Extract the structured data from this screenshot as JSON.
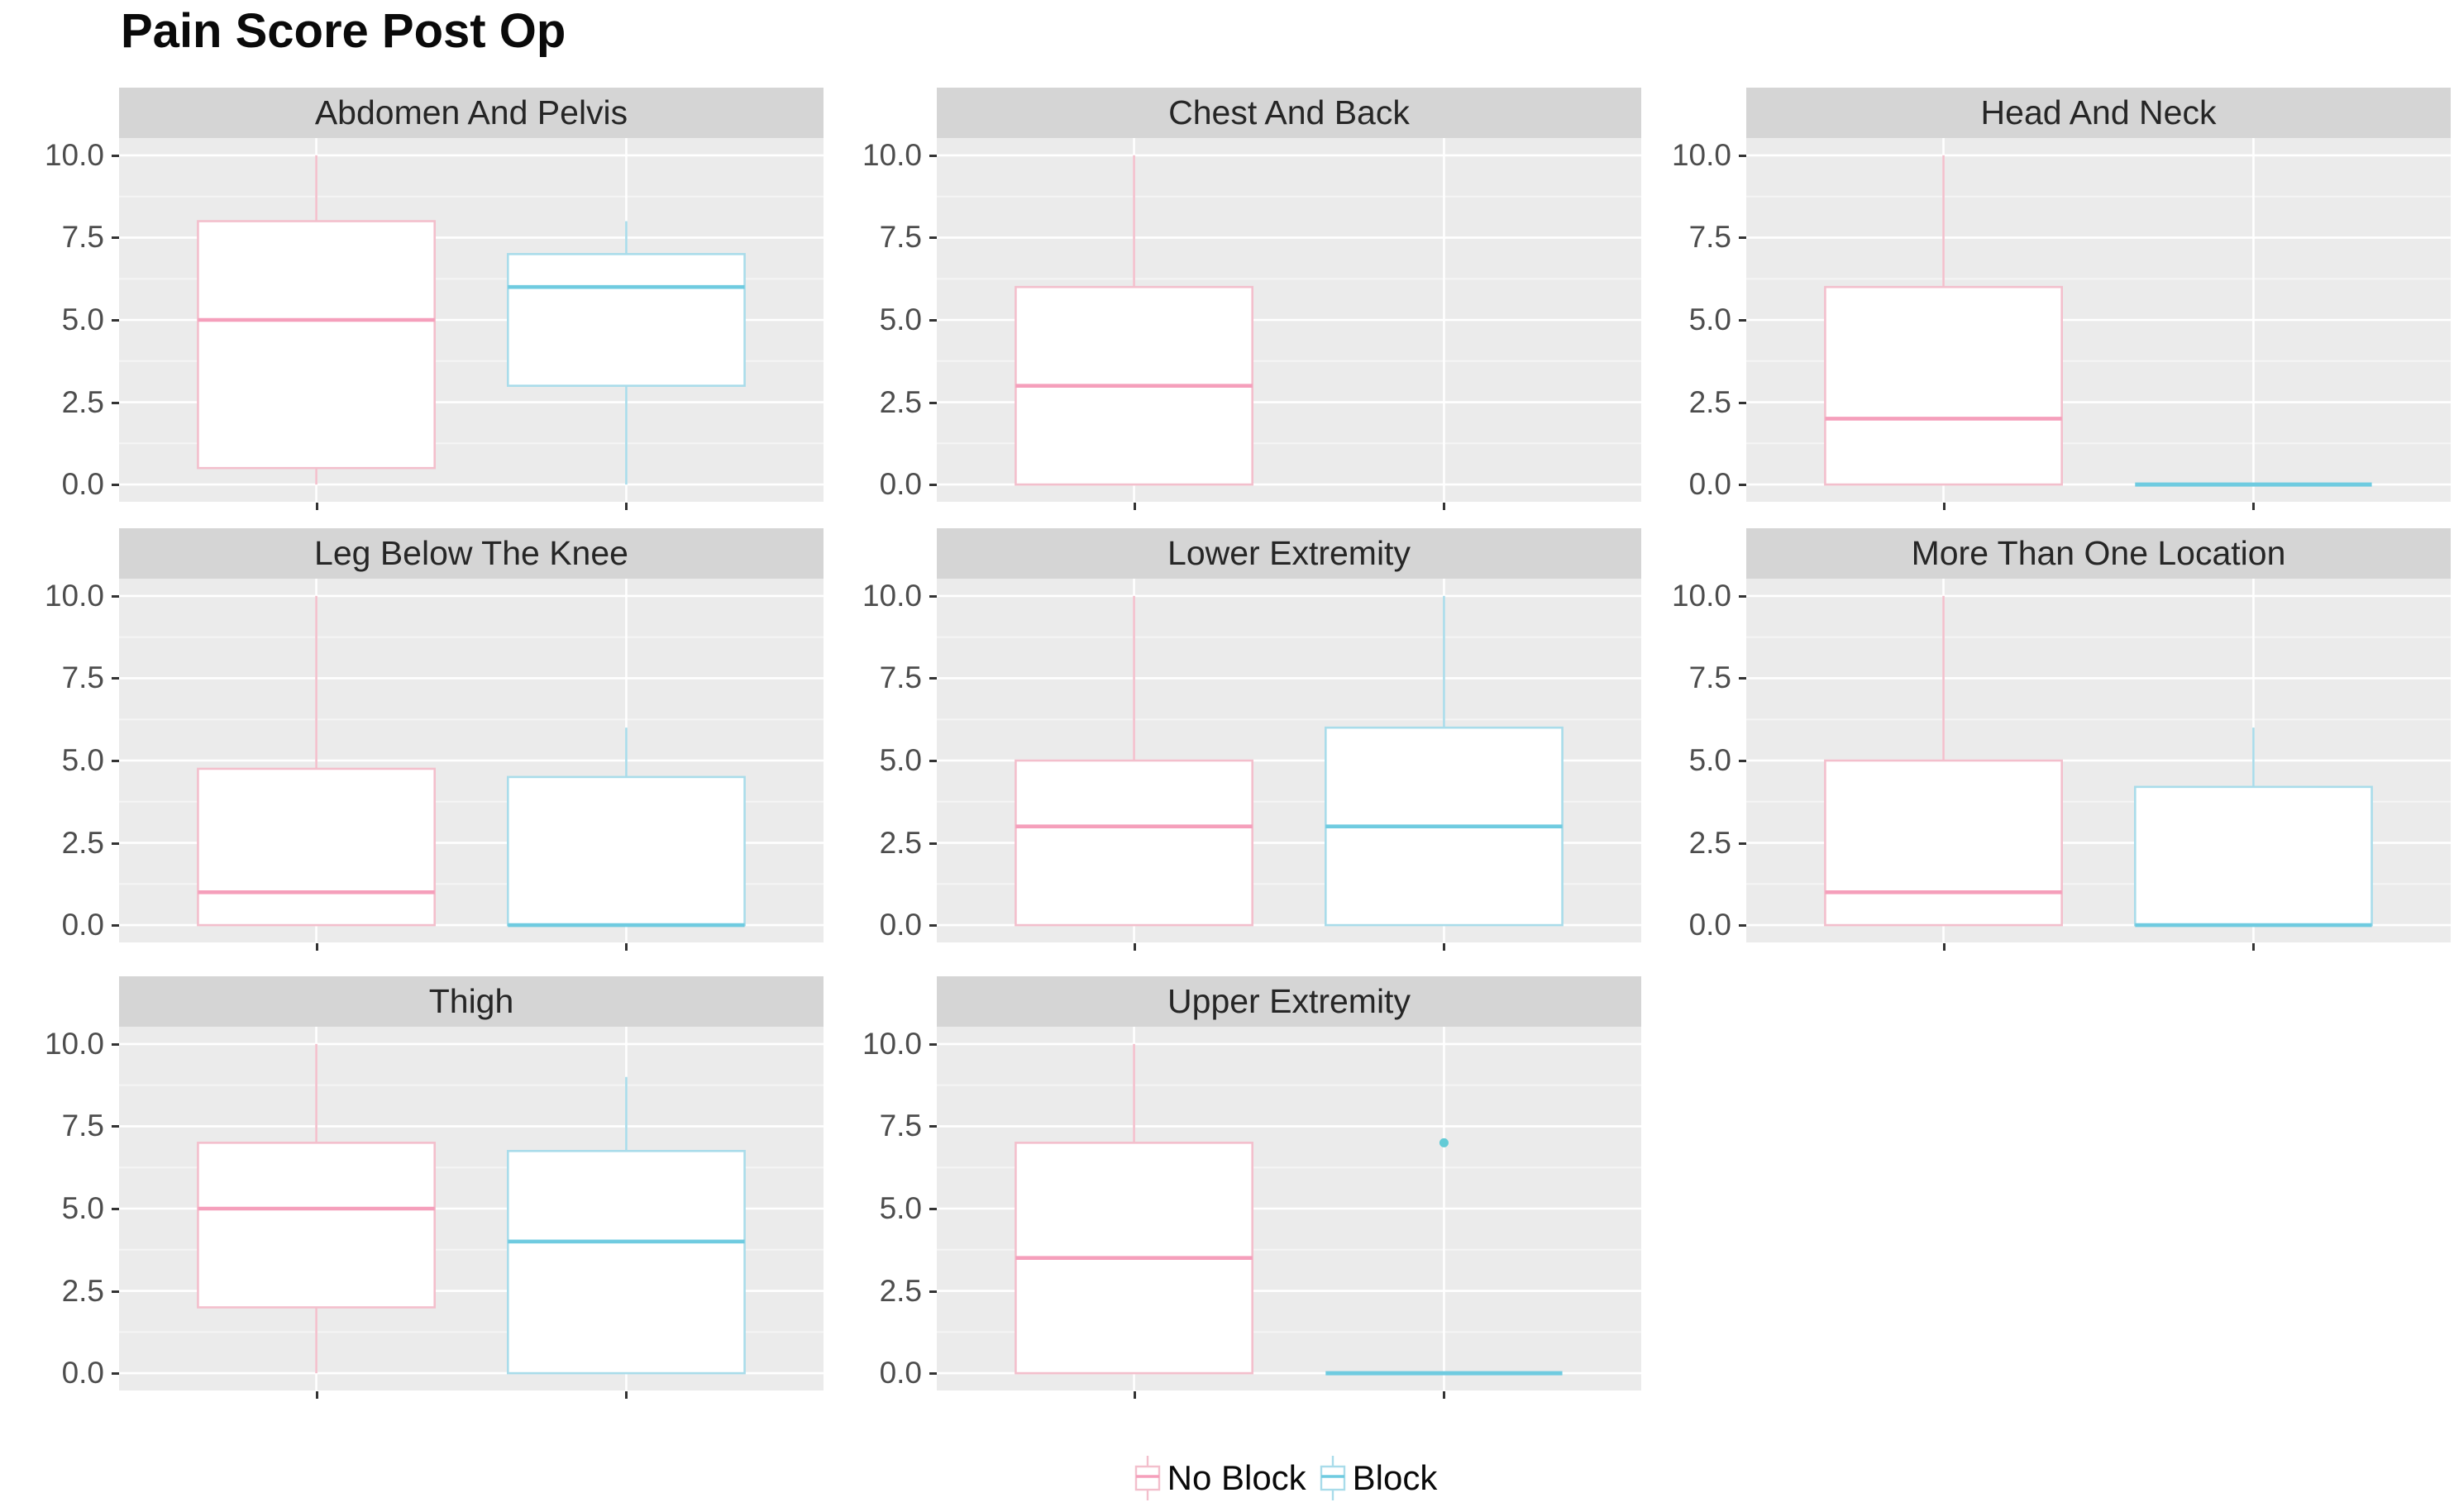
{
  "chart_data": {
    "type": "boxplot",
    "title": "Pain Score Post Op",
    "facet_layout": {
      "columns": 3,
      "rows": 3,
      "empty_last_cell": true
    },
    "y_axis": {
      "range": [
        0,
        10
      ],
      "tick_values": [
        10,
        7.5,
        5,
        2.5,
        0
      ],
      "tick_labels": [
        "10.0",
        "7.5",
        "5.0",
        "2.5",
        "0.0"
      ],
      "minor_gridlines": [
        1.25,
        3.75,
        6.25,
        8.75
      ],
      "grid": "white-on-gray"
    },
    "groups": [
      {
        "name": "No Block",
        "border_color": "#f3bfcc",
        "median_color": "#f59fbb"
      },
      {
        "name": "Block",
        "border_color": "#a9dcea",
        "median_color": "#6fcbe0"
      }
    ],
    "facets": [
      {
        "label": "Abdomen And Pelvis",
        "boxes": [
          {
            "group": "No Block",
            "min": 0,
            "q1": 0.5,
            "median": 5,
            "q3": 8,
            "max": 10
          },
          {
            "group": "Block",
            "min": 0,
            "q1": 3,
            "median": 6,
            "q3": 7,
            "max": 8
          }
        ]
      },
      {
        "label": "Chest And Back",
        "boxes": [
          {
            "group": "No Block",
            "min": 0,
            "q1": 0,
            "median": 3,
            "q3": 6,
            "max": 10
          }
        ]
      },
      {
        "label": "Head And Neck",
        "boxes": [
          {
            "group": "No Block",
            "min": 0,
            "q1": 0,
            "median": 2,
            "q3": 6,
            "max": 10
          },
          {
            "group": "Block",
            "min": 0,
            "q1": 0,
            "median": 0,
            "q3": 0,
            "max": 0
          }
        ]
      },
      {
        "label": "Leg Below The Knee",
        "boxes": [
          {
            "group": "No Block",
            "min": 0,
            "q1": 0,
            "median": 1,
            "q3": 4.75,
            "max": 10
          },
          {
            "group": "Block",
            "min": 0,
            "q1": 0,
            "median": 0,
            "q3": 4.5,
            "max": 6
          }
        ]
      },
      {
        "label": "Lower Extremity",
        "boxes": [
          {
            "group": "No Block",
            "min": 0,
            "q1": 0,
            "median": 3,
            "q3": 5,
            "max": 10
          },
          {
            "group": "Block",
            "min": 0,
            "q1": 0,
            "median": 3,
            "q3": 6,
            "max": 10
          }
        ]
      },
      {
        "label": "More Than One Location",
        "boxes": [
          {
            "group": "No Block",
            "min": 0,
            "q1": 0,
            "median": 1,
            "q3": 5,
            "max": 10
          },
          {
            "group": "Block",
            "min": 0,
            "q1": 0,
            "median": 0,
            "q3": 4.2,
            "max": 6
          }
        ]
      },
      {
        "label": "Thigh",
        "boxes": [
          {
            "group": "No Block",
            "min": 0,
            "q1": 2,
            "median": 5,
            "q3": 7,
            "max": 10
          },
          {
            "group": "Block",
            "min": 0,
            "q1": 0,
            "median": 4,
            "q3": 6.75,
            "max": 9
          }
        ]
      },
      {
        "label": "Upper Extremity",
        "boxes": [
          {
            "group": "No Block",
            "min": 0,
            "q1": 0,
            "median": 3.5,
            "q3": 7,
            "max": 10
          },
          {
            "group": "Block",
            "min": 0,
            "q1": 0,
            "median": 0,
            "q3": 0,
            "max": 0,
            "outliers": [
              7
            ]
          }
        ]
      }
    ],
    "legend": {
      "items": [
        "No Block",
        "Block"
      ],
      "position": "bottom-center"
    },
    "colors": {
      "panel_background": "#ebebeb",
      "strip_background": "#d5d5d5",
      "major_gridline": "#ffffff",
      "minor_gridline": "#f5f5f5",
      "axis_text": "#4d4d4d",
      "tick_mark": "#333333",
      "outlier_dot": "#63cbd6",
      "box_fill": "#ffffff"
    }
  }
}
